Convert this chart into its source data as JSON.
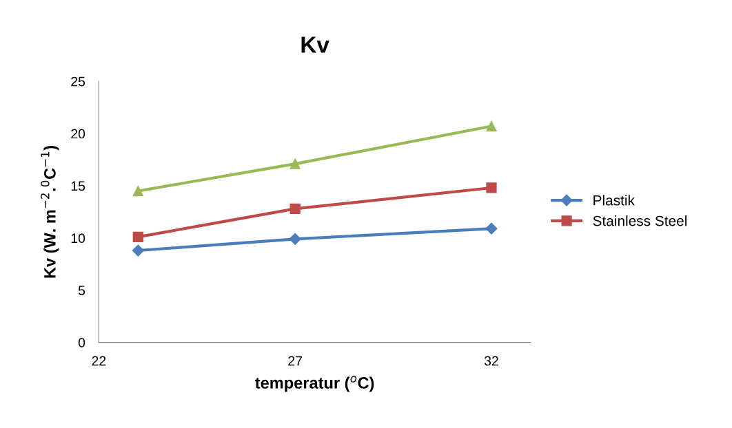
{
  "chart_data": {
    "type": "line",
    "title": "Kv",
    "xlabel": "temperatur ($^{o}$C)",
    "ylabel": "Kv (W. m$^{−2}$.$^{0}$C$^{−1}$)",
    "x": [
      23,
      27,
      32
    ],
    "xlim": [
      22,
      33
    ],
    "xticks": [
      22,
      27,
      32
    ],
    "ylim": [
      0,
      25
    ],
    "yticks": [
      0,
      5,
      10,
      15,
      20,
      25
    ],
    "grid": false,
    "legend": "right",
    "series": [
      {
        "name": "Plastik",
        "color": "#4a7ebb",
        "marker": "diamond",
        "values": [
          8.8,
          9.9,
          10.9
        ]
      },
      {
        "name": "Stainless Steel",
        "color": "#be4b48",
        "marker": "square",
        "values": [
          10.1,
          12.8,
          14.8
        ]
      },
      {
        "color": "#98b954",
        "marker": "triangle",
        "values": [
          14.5,
          17.1,
          20.7
        ]
      }
    ]
  }
}
